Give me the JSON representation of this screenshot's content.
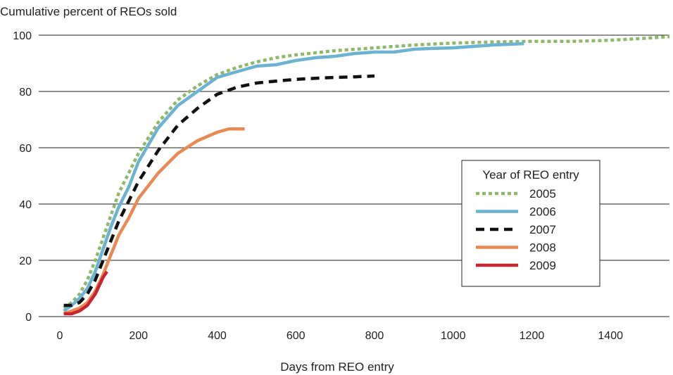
{
  "chart_data": {
    "type": "line",
    "title": "",
    "ylabel": "Cumulative percent of REOs sold",
    "xlabel": "Days from REO entry",
    "xlim": [
      0,
      1550
    ],
    "ylim": [
      0,
      100
    ],
    "x_ticks": [
      0,
      200,
      400,
      600,
      800,
      1000,
      1200,
      1400
    ],
    "y_ticks": [
      0,
      20,
      40,
      60,
      80,
      100
    ],
    "grid": "horizontal",
    "legend": {
      "title": "Year of REO entry",
      "placement": "right"
    },
    "series": [
      {
        "name": "2005",
        "color": "#8fb96a",
        "style": "dotted",
        "points": [
          [
            10,
            3
          ],
          [
            30,
            5
          ],
          [
            50,
            8
          ],
          [
            70,
            13
          ],
          [
            90,
            20
          ],
          [
            110,
            28
          ],
          [
            130,
            36
          ],
          [
            150,
            44
          ],
          [
            175,
            51
          ],
          [
            200,
            58
          ],
          [
            250,
            69
          ],
          [
            300,
            77
          ],
          [
            350,
            82
          ],
          [
            400,
            86
          ],
          [
            450,
            88.5
          ],
          [
            500,
            90.5
          ],
          [
            550,
            92
          ],
          [
            600,
            93
          ],
          [
            700,
            94.5
          ],
          [
            800,
            95.5
          ],
          [
            900,
            96.5
          ],
          [
            1000,
            97.2
          ],
          [
            1100,
            97.6
          ],
          [
            1200,
            97.8
          ],
          [
            1300,
            97.8
          ],
          [
            1400,
            98.2
          ],
          [
            1500,
            99
          ],
          [
            1550,
            99.5
          ]
        ]
      },
      {
        "name": "2006",
        "color": "#6cb2d1",
        "style": "solid",
        "points": [
          [
            10,
            2
          ],
          [
            30,
            4
          ],
          [
            50,
            6.5
          ],
          [
            70,
            10
          ],
          [
            90,
            16
          ],
          [
            110,
            24
          ],
          [
            130,
            32
          ],
          [
            150,
            39
          ],
          [
            175,
            46
          ],
          [
            200,
            55
          ],
          [
            250,
            67
          ],
          [
            300,
            75
          ],
          [
            350,
            80
          ],
          [
            400,
            85
          ],
          [
            450,
            87
          ],
          [
            500,
            89
          ],
          [
            550,
            89.5
          ],
          [
            600,
            91
          ],
          [
            650,
            92
          ],
          [
            700,
            92.5
          ],
          [
            750,
            93.5
          ],
          [
            800,
            94
          ],
          [
            850,
            94
          ],
          [
            900,
            95
          ],
          [
            950,
            95.3
          ],
          [
            1000,
            95.5
          ],
          [
            1050,
            96
          ],
          [
            1100,
            96.5
          ],
          [
            1150,
            96.8
          ],
          [
            1180,
            97
          ]
        ]
      },
      {
        "name": "2007",
        "color": "#111111",
        "style": "dashed",
        "points": [
          [
            10,
            4
          ],
          [
            30,
            4
          ],
          [
            50,
            5
          ],
          [
            70,
            8
          ],
          [
            90,
            13
          ],
          [
            110,
            20
          ],
          [
            130,
            27
          ],
          [
            150,
            34
          ],
          [
            175,
            41
          ],
          [
            200,
            48
          ],
          [
            250,
            59
          ],
          [
            300,
            68
          ],
          [
            350,
            74
          ],
          [
            400,
            79
          ],
          [
            450,
            81.5
          ],
          [
            500,
            83
          ],
          [
            550,
            83.7
          ],
          [
            600,
            84.3
          ],
          [
            650,
            84.7
          ],
          [
            700,
            85
          ],
          [
            750,
            85.2
          ],
          [
            800,
            85.5
          ]
        ]
      },
      {
        "name": "2008",
        "color": "#e98a55",
        "style": "solid",
        "points": [
          [
            10,
            1
          ],
          [
            30,
            2
          ],
          [
            50,
            3
          ],
          [
            70,
            5
          ],
          [
            90,
            9
          ],
          [
            110,
            15
          ],
          [
            130,
            22
          ],
          [
            150,
            29
          ],
          [
            175,
            35
          ],
          [
            200,
            42
          ],
          [
            250,
            51
          ],
          [
            300,
            58
          ],
          [
            350,
            62.5
          ],
          [
            400,
            65.5
          ],
          [
            430,
            66.7
          ],
          [
            470,
            66.7
          ]
        ]
      },
      {
        "name": "2009",
        "color": "#c8242f",
        "style": "solid",
        "points": [
          [
            10,
            1
          ],
          [
            30,
            1
          ],
          [
            50,
            2
          ],
          [
            70,
            4
          ],
          [
            90,
            8
          ],
          [
            100,
            11
          ],
          [
            110,
            14
          ],
          [
            120,
            16
          ]
        ]
      }
    ]
  }
}
